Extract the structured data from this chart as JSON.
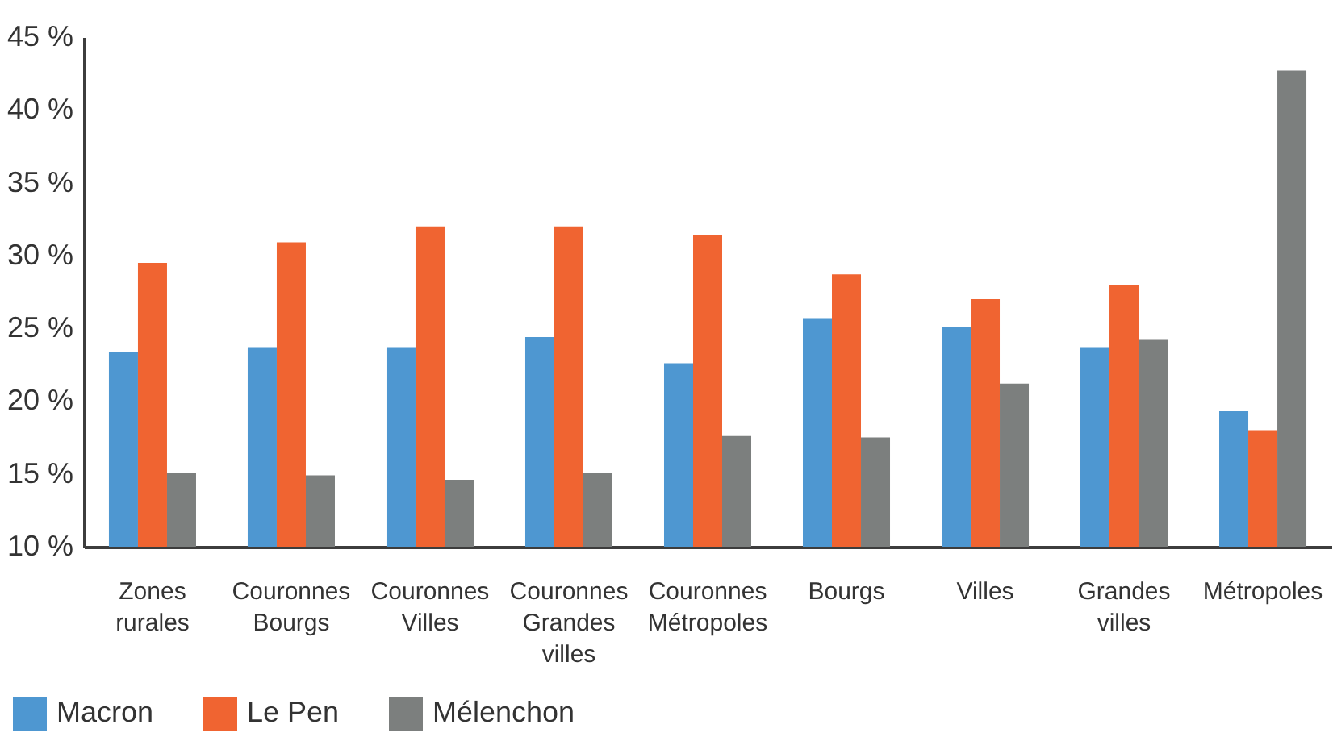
{
  "chart_data": {
    "type": "bar",
    "categories": [
      "Zones rurales",
      "Couronnes Bourgs",
      "Couronnes Villes",
      "Couronnes Grandes villes",
      "Couronnes Métropoles",
      "Bourgs",
      "Villes",
      "Grandes villes",
      "Métropoles"
    ],
    "series": [
      {
        "name": "Macron",
        "color": "#4e97d1",
        "values": [
          23.4,
          23.7,
          23.7,
          24.4,
          22.6,
          25.7,
          25.1,
          23.7,
          19.3
        ]
      },
      {
        "name": "Le Pen",
        "color": "#f06431",
        "values": [
          29.5,
          30.9,
          32.0,
          32.0,
          31.4,
          28.7,
          27.0,
          28.0,
          18.0
        ]
      },
      {
        "name": "Mélenchon",
        "color": "#7c7f7e",
        "values": [
          15.1,
          14.9,
          14.6,
          15.1,
          17.6,
          17.5,
          21.2,
          24.2,
          42.7
        ]
      }
    ],
    "ylim": [
      10,
      45
    ],
    "yticks": [
      {
        "value": 10,
        "label": "10 %"
      },
      {
        "value": 15,
        "label": "15 %"
      },
      {
        "value": 20,
        "label": "20 %"
      },
      {
        "value": 25,
        "label": "25 %"
      },
      {
        "value": 30,
        "label": "30 %"
      },
      {
        "value": 35,
        "label": "35 %"
      },
      {
        "value": 40,
        "label": "40 %"
      },
      {
        "value": 45,
        "label": "45 %"
      }
    ],
    "grid": false,
    "legend": "bottom"
  }
}
